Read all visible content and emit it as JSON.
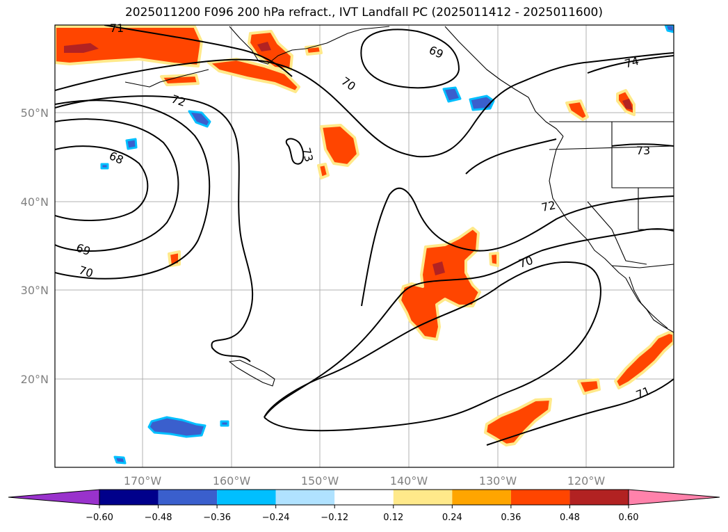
{
  "title": "2025011200 F096 200 hPa refract., IVT Landfall PC (2025011412 - 2025011600)",
  "lat_labels": [
    "50°N",
    "40°N",
    "30°N",
    "20°N"
  ],
  "lon_labels": [
    "170°W",
    "160°W",
    "150°W",
    "140°W",
    "130°W",
    "120°W"
  ],
  "contour_labels": [
    "71",
    "69",
    "70",
    "72",
    "73",
    "68",
    "69",
    "70",
    "72",
    "70",
    "74",
    "73",
    "71"
  ],
  "colorbar": {
    "ticks": [
      "−0.60",
      "−0.48",
      "−0.36",
      "−0.24",
      "−0.12",
      "0.12",
      "0.24",
      "0.36",
      "0.48",
      "0.60"
    ],
    "colors": [
      "#9932cc",
      "#00008b",
      "#3a5fcd",
      "#00bfff",
      "#b0e2ff",
      "#ffffff",
      "#ffe98a",
      "#ffa500",
      "#ff4500",
      "#b22222",
      "#ff82ab",
      "#ff82ab"
    ]
  },
  "fill_colors": {
    "pos_strong": "#ff4500",
    "pos_edge": "#ffa500",
    "pos_outer": "#ffe98a",
    "pos_dark": "#b22222",
    "neg_strong": "#3a5fcd",
    "neg_light": "#00bfff"
  }
}
